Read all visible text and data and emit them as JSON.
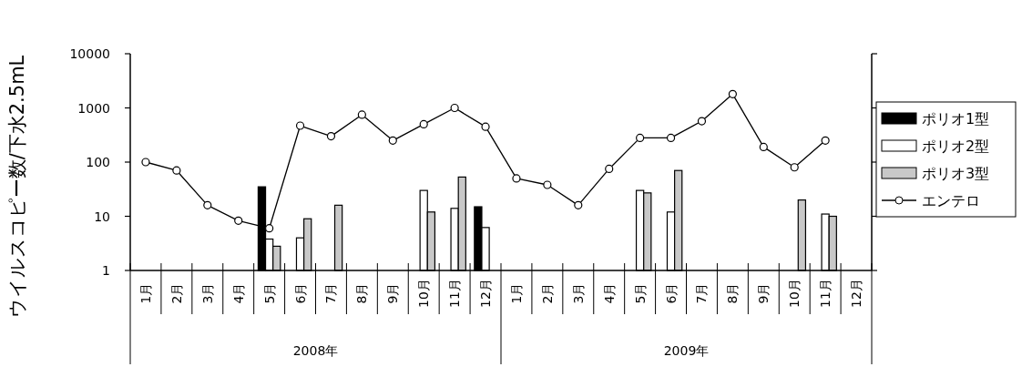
{
  "chart_data": {
    "type": "bar",
    "ylabel": "ウイルスコピー数/下水2.5mL",
    "categories": [
      "1月",
      "2月",
      "3月",
      "4月",
      "5月",
      "6月",
      "7月",
      "8月",
      "9月",
      "10月",
      "11月",
      "12月",
      "1月",
      "2月",
      "3月",
      "4月",
      "5月",
      "6月",
      "7月",
      "8月",
      "9月",
      "10月",
      "11月",
      "12月"
    ],
    "series": [
      {
        "name": "ポリオ1型",
        "color": "#000000",
        "values": [
          null,
          null,
          null,
          null,
          35,
          null,
          null,
          null,
          null,
          null,
          null,
          15,
          null,
          null,
          null,
          null,
          null,
          null,
          null,
          null,
          null,
          null,
          null,
          null
        ]
      },
      {
        "name": "ポリオ2型",
        "color": "#ffffff",
        "values": [
          null,
          null,
          null,
          null,
          3.8,
          4,
          null,
          null,
          null,
          30,
          14,
          6.2,
          null,
          null,
          null,
          null,
          30,
          12,
          null,
          null,
          null,
          null,
          11,
          null
        ]
      },
      {
        "name": "ポリオ3型",
        "color": "#c8c8c8",
        "values": [
          null,
          null,
          null,
          null,
          2.8,
          9,
          16,
          null,
          null,
          12,
          53,
          null,
          null,
          null,
          null,
          null,
          27,
          70,
          null,
          null,
          null,
          20,
          10,
          null
        ]
      },
      {
        "name": "エンテロ",
        "type": "line",
        "color": "#000000",
        "marker": "circle",
        "values": [
          100,
          70,
          16,
          8.3,
          6,
          470,
          300,
          750,
          250,
          500,
          1000,
          450,
          50,
          38,
          16,
          75,
          280,
          280,
          570,
          1800,
          190,
          80,
          250,
          null
        ]
      }
    ],
    "log": true,
    "ylim": [
      1,
      10000
    ],
    "yticks": [
      1,
      10,
      100,
      1000,
      10000
    ],
    "grid": false,
    "legend": "right",
    "annotations": [
      "2008年",
      "2009年"
    ]
  }
}
